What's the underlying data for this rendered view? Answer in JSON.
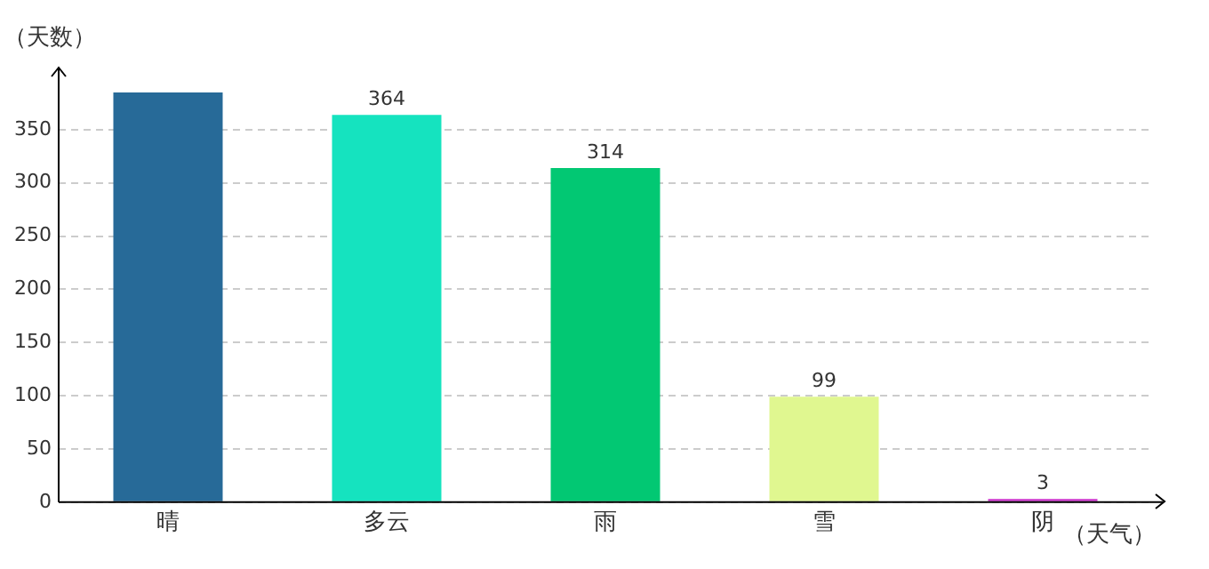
{
  "chart_data": {
    "type": "bar",
    "ylabel": "（天数）",
    "xlabel": "（天气）",
    "categories": [
      "晴",
      "多云",
      "雨",
      "雪",
      "阴"
    ],
    "values": [
      385,
      364,
      314,
      99,
      3
    ],
    "colors": [
      "#276a98",
      "#15e3bf",
      "#02c873",
      "#e0f790",
      "#cc33cc"
    ],
    "value_labels": [
      null,
      "364",
      "314",
      "99",
      "3"
    ],
    "ylim": [
      0,
      385
    ],
    "yticks": [
      0,
      50,
      100,
      150,
      200,
      250,
      300,
      350
    ],
    "grid": "y",
    "legend": false
  }
}
